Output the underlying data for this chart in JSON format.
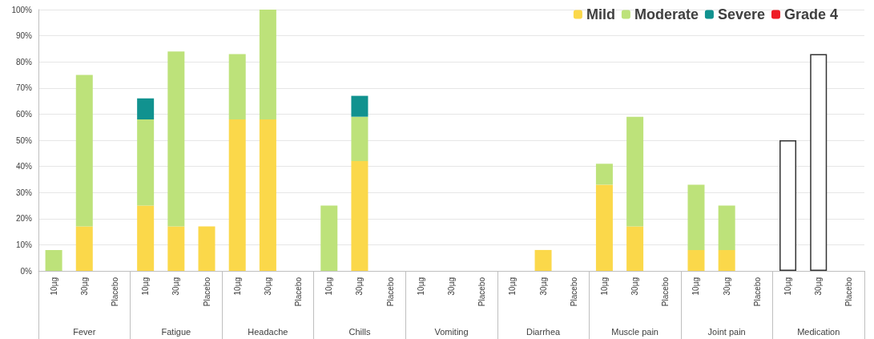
{
  "chart_data": {
    "type": "bar",
    "stacked": true,
    "categories": [
      "10µg",
      "30µg",
      "Placebo",
      "10µg",
      "30µg",
      "Placebo",
      "10µg",
      "30µg",
      "Placebo",
      "10µg",
      "30µg",
      "Placebo",
      "10µg",
      "30µg",
      "Placebo",
      "10µg",
      "30µg",
      "Placebo",
      "10µg",
      "30µg",
      "Placebo",
      "10µg",
      "30µg",
      "Placebo",
      "10µg",
      "30µg",
      "Placebo"
    ],
    "annotations": [
      "Fever",
      "Fatigue",
      "Headache",
      "Chills",
      "Vomiting",
      "Diarrhea",
      "Muscle pain",
      "Joint pain",
      "Medication"
    ],
    "series": [
      {
        "name": "Mild",
        "color": "#fbd84a",
        "values": [
          null,
          17,
          null,
          25,
          17,
          17,
          58,
          58,
          null,
          null,
          42,
          null,
          null,
          null,
          null,
          null,
          8,
          null,
          33,
          17,
          null,
          8,
          8,
          null,
          null,
          null,
          null
        ]
      },
      {
        "name": "Moderate",
        "color": "#bde27a",
        "values": [
          8,
          58,
          null,
          33,
          67,
          null,
          25,
          42,
          null,
          25,
          17,
          null,
          null,
          null,
          null,
          null,
          null,
          null,
          8,
          42,
          null,
          25,
          17,
          null,
          null,
          null,
          null
        ]
      },
      {
        "name": "Severe",
        "color": "#11928f",
        "values": [
          null,
          null,
          null,
          8,
          null,
          null,
          null,
          null,
          null,
          null,
          8,
          null,
          null,
          null,
          null,
          null,
          null,
          null,
          null,
          null,
          null,
          null,
          null,
          null,
          null,
          null,
          null
        ]
      },
      {
        "name": "Grade 4",
        "color": "#ee1c25",
        "values": [
          null,
          null,
          null,
          null,
          null,
          null,
          null,
          null,
          null,
          null,
          null,
          null,
          null,
          null,
          null,
          null,
          null,
          null,
          null,
          null,
          null,
          null,
          null,
          null,
          null,
          null,
          null
        ]
      },
      {
        "color": "#ffffff",
        "values": [
          null,
          null,
          null,
          null,
          null,
          null,
          null,
          null,
          null,
          null,
          null,
          null,
          null,
          null,
          null,
          null,
          null,
          null,
          null,
          null,
          null,
          null,
          null,
          null,
          50,
          83,
          null
        ]
      }
    ],
    "ylim": [
      0,
      100
    ],
    "yticks": [
      {
        "value": 0,
        "label": "0%"
      },
      {
        "value": 10,
        "label": "10%"
      },
      {
        "value": 20,
        "label": "20%"
      },
      {
        "value": 30,
        "label": "30%"
      },
      {
        "value": 40,
        "label": "40%"
      },
      {
        "value": 50,
        "label": "50%"
      },
      {
        "value": 60,
        "label": "60%"
      },
      {
        "value": 70,
        "label": "70%"
      },
      {
        "value": 80,
        "label": "80%"
      },
      {
        "value": 90,
        "label": "90%"
      },
      {
        "value": 100,
        "label": "100%"
      }
    ],
    "grid": "y",
    "legend": "top right"
  }
}
